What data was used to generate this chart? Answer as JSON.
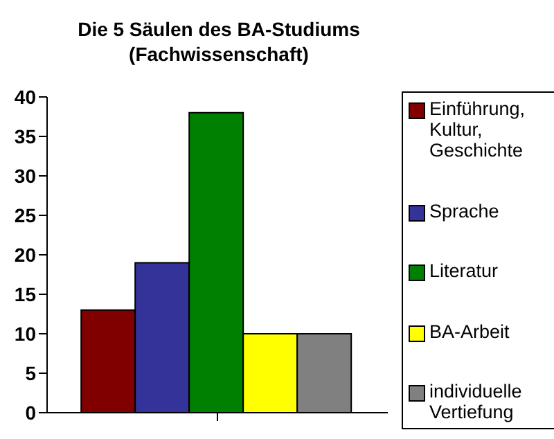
{
  "chart_data": {
    "type": "bar",
    "title": "Die 5 Säulen des BA-Studiums\n(Fachwissenschaft)",
    "categories": [
      null
    ],
    "series": [
      {
        "name": "Einführung, Kultur, Geschichte",
        "color": "#800000",
        "values": [
          13
        ]
      },
      {
        "name": "Sprache",
        "color": "#333399",
        "values": [
          19
        ]
      },
      {
        "name": "Literatur",
        "color": "#008000",
        "values": [
          38
        ]
      },
      {
        "name": "BA-Arbeit",
        "color": "#ffff00",
        "values": [
          10
        ]
      },
      {
        "name": "individuelle Vertiefung",
        "color": "#808080",
        "values": [
          10
        ]
      }
    ],
    "ylim": [
      0,
      40
    ],
    "yticks": [
      0,
      5,
      10,
      15,
      20,
      25,
      30,
      35,
      40
    ],
    "grid": false,
    "legend": "right"
  }
}
